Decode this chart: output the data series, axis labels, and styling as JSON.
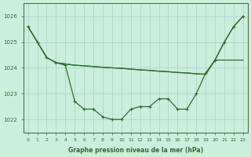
{
  "line1": [
    1025.6,
    1025.0,
    1024.4,
    1024.2,
    1024.1,
    1022.7,
    1022.4,
    1022.4,
    1022.1,
    1022.0,
    1022.0,
    1022.4,
    1022.5,
    1022.5,
    1022.8,
    1022.8,
    1022.4,
    1022.4,
    1023.0,
    1023.8,
    1024.3,
    1025.0,
    1025.6,
    1026.0
  ],
  "line2": [
    1025.6,
    1025.0,
    1024.4,
    1024.2,
    1024.15,
    1024.1,
    1024.08,
    1024.05,
    1024.02,
    1024.0,
    1023.98,
    1023.95,
    1023.92,
    1023.9,
    1023.87,
    1023.85,
    1023.82,
    1023.8,
    1023.77,
    1023.75,
    1024.3,
    1024.3,
    1024.3,
    1024.3
  ],
  "line3": [
    1025.6,
    1025.0,
    1024.4,
    1024.2,
    1024.15,
    1024.1,
    1024.08,
    1024.05,
    1024.02,
    1024.0,
    1023.98,
    1023.95,
    1023.92,
    1023.9,
    1023.87,
    1023.85,
    1023.82,
    1023.8,
    1023.77,
    1023.75,
    1024.3,
    1025.0,
    1025.6,
    1026.0
  ],
  "x": [
    0,
    1,
    2,
    3,
    4,
    5,
    6,
    7,
    8,
    9,
    10,
    11,
    12,
    13,
    14,
    15,
    16,
    17,
    18,
    19,
    20,
    21,
    22,
    23
  ],
  "xlabels": [
    "0",
    "1",
    "2",
    "3",
    "4",
    "5",
    "6",
    "7",
    "8",
    "9",
    "10",
    "11",
    "12",
    "13",
    "14",
    "15",
    "16",
    "17",
    "18",
    "19",
    "20",
    "21",
    "22",
    "23"
  ],
  "ylabel_ticks": [
    1022,
    1023,
    1024,
    1025,
    1026
  ],
  "ylim": [
    1021.5,
    1026.5
  ],
  "xlim": [
    -0.5,
    23.5
  ],
  "bg_color": "#cceedd",
  "line_color": "#2d6e2d",
  "grid_color": "#aacccc",
  "xlabel": "Graphe pression niveau de la mer (hPa)",
  "title": ""
}
